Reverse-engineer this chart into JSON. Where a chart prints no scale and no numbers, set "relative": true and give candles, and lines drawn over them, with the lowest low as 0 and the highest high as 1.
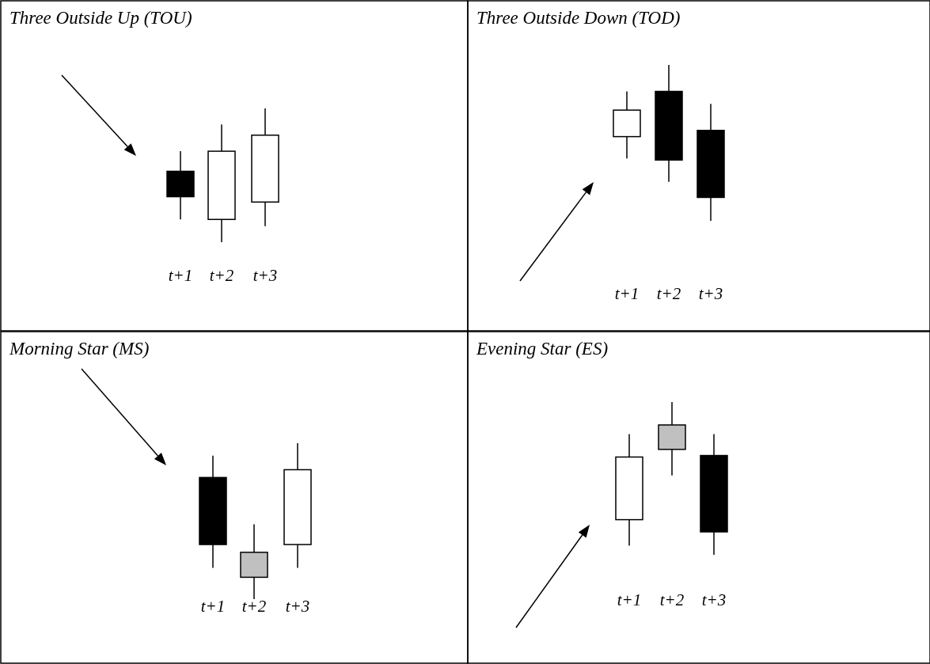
{
  "chart_data": [
    {
      "type": "candlestick",
      "title": "Three Outside Up (TOU)",
      "relative": true,
      "categories": [
        "t+1",
        "t+2",
        "t+3"
      ],
      "ohlc": [
        [
          0.53,
          0.68,
          0.17,
          0.34
        ],
        [
          0.17,
          0.88,
          0,
          0.68
        ],
        [
          0.3,
          1,
          0.12,
          0.8
        ]
      ],
      "colors": [
        "#000000",
        "#ffffff",
        "#ffffff"
      ]
    },
    {
      "type": "candlestick",
      "title": "Three Outside Down (TOD)",
      "relative": true,
      "categories": [
        "t+1",
        "t+2",
        "t+3"
      ],
      "ohlc": [
        [
          0.54,
          0.83,
          0.4,
          0.71
        ],
        [
          0.83,
          1,
          0.25,
          0.39
        ],
        [
          0.58,
          0.75,
          0,
          0.15
        ]
      ],
      "colors": [
        "#ffffff",
        "#000000",
        "#000000"
      ]
    },
    {
      "type": "candlestick",
      "title": "Morning Star (MS)",
      "relative": true,
      "categories": [
        "t+1",
        "t+2",
        "t+3"
      ],
      "ohlc": [
        [
          0.78,
          0.92,
          0.2,
          0.35
        ],
        [
          0.14,
          0.48,
          0,
          0.3
        ],
        [
          0.35,
          1,
          0.2,
          0.83
        ]
      ],
      "colors": [
        "#000000",
        "#c0c0c0",
        "#ffffff"
      ]
    },
    {
      "type": "candlestick",
      "title": "Evening Star (ES)",
      "relative": true,
      "categories": [
        "t+1",
        "t+2",
        "t+3"
      ],
      "ohlc": [
        [
          0.23,
          0.79,
          0.06,
          0.64
        ],
        [
          0.69,
          1,
          0.52,
          0.85
        ],
        [
          0.65,
          0.79,
          0,
          0.15
        ]
      ],
      "colors": [
        "#ffffff",
        "#c0c0c0",
        "#000000"
      ]
    }
  ]
}
